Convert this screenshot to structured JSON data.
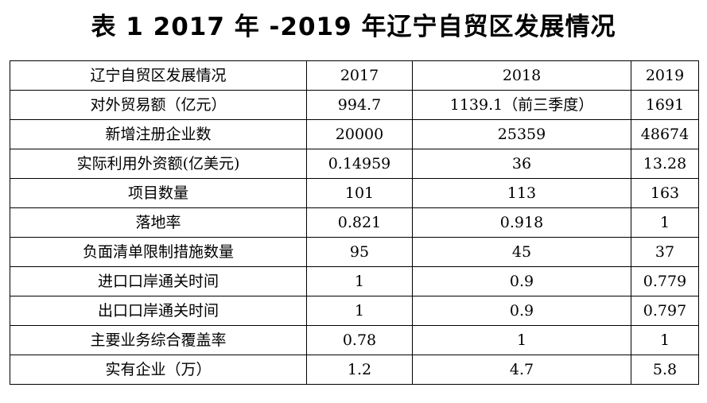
{
  "title": "表 1  2017 年 -2019 年辽宁自贸区发展情况",
  "table": {
    "headers": [
      "辽宁自贸区发展情况",
      "2017",
      "2018",
      "2019"
    ],
    "rows": [
      [
        "对外贸易额（亿元）",
        "994.7",
        "1139.1（前三季度）",
        "1691"
      ],
      [
        "新增注册企业数",
        "20000",
        "25359",
        "48674"
      ],
      [
        "实际利用外资额(亿美元)",
        "0.14959",
        "36",
        "13.28"
      ],
      [
        "项目数量",
        "101",
        "113",
        "163"
      ],
      [
        "落地率",
        "0.821",
        "0.918",
        "1"
      ],
      [
        "负面清单限制措施数量",
        "95",
        "45",
        "37"
      ],
      [
        "进口口岸通关时间",
        "1",
        "0.9",
        "0.779"
      ],
      [
        "出口口岸通关时间",
        "1",
        "0.9",
        "0.797"
      ],
      [
        "主要业务综合覆盖率",
        "0.78",
        "1",
        "1"
      ],
      [
        "实有企业（万）",
        "1.2",
        "4.7",
        "5.8"
      ]
    ]
  }
}
